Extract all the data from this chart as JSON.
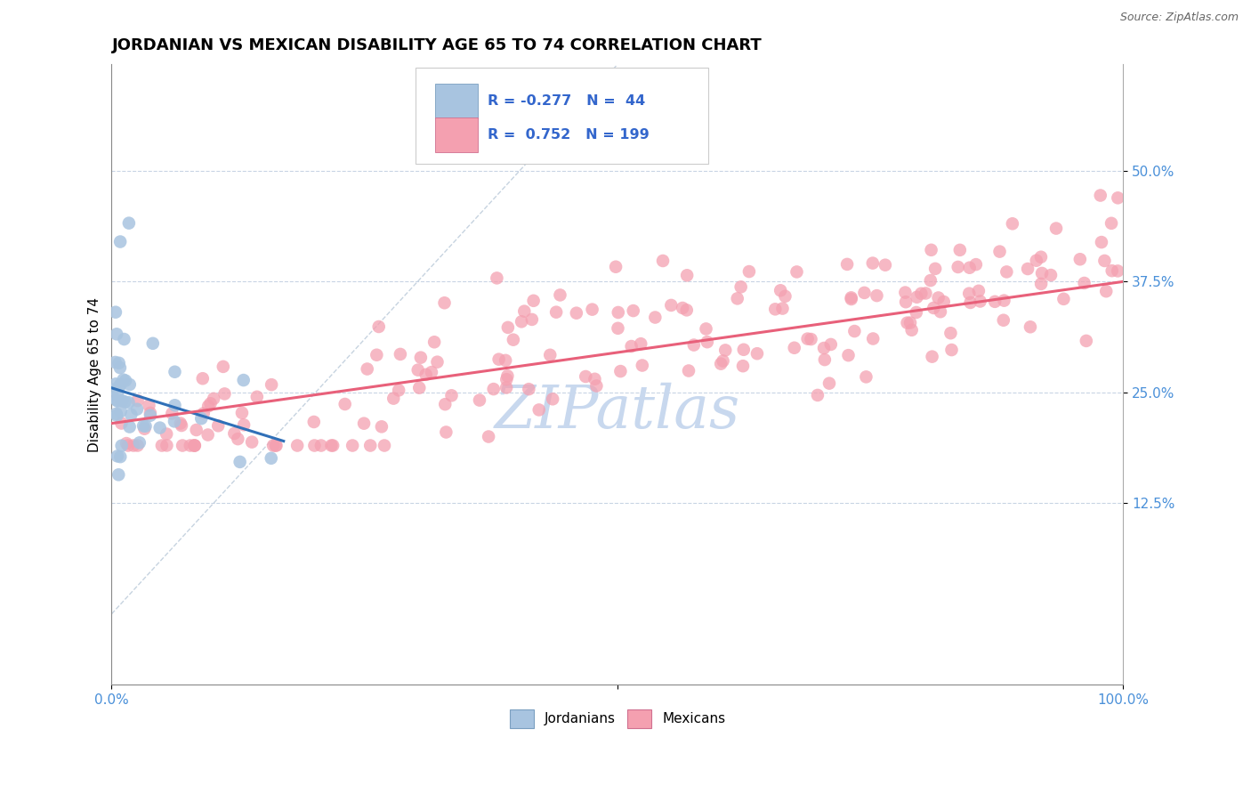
{
  "title": "JORDANIAN VS MEXICAN DISABILITY AGE 65 TO 74 CORRELATION CHART",
  "source_text": "Source: ZipAtlas.com",
  "ylabel": "Disability Age 65 to 74",
  "xlim": [
    0.0,
    1.0
  ],
  "ylim": [
    -0.08,
    0.62
  ],
  "x_ticks": [
    0.0,
    0.5,
    1.0
  ],
  "x_tick_labels": [
    "0.0%",
    "",
    "100.0%"
  ],
  "y_ticks": [
    0.125,
    0.25,
    0.375,
    0.5
  ],
  "y_tick_labels": [
    "12.5%",
    "25.0%",
    "37.5%",
    "50.0%"
  ],
  "jordan_R": -0.277,
  "jordan_N": 44,
  "mexico_R": 0.752,
  "mexico_N": 199,
  "jordan_color": "#a8c4e0",
  "mexico_color": "#f4a0b0",
  "jordan_line_color": "#3070b8",
  "mexico_line_color": "#e8607a",
  "watermark_color": "#c8d8ee",
  "background_color": "#ffffff",
  "grid_color": "#c8d4e4",
  "tick_label_color": "#4a90d9",
  "title_fontsize": 13,
  "jordan_line_start_x": 0.0,
  "jordan_line_start_y": 0.255,
  "jordan_line_end_x": 0.17,
  "jordan_line_end_y": 0.195,
  "mexico_line_start_x": 0.0,
  "mexico_line_start_y": 0.215,
  "mexico_line_end_x": 1.0,
  "mexico_line_end_y": 0.375,
  "diag_line_color": "#b8c8d8"
}
